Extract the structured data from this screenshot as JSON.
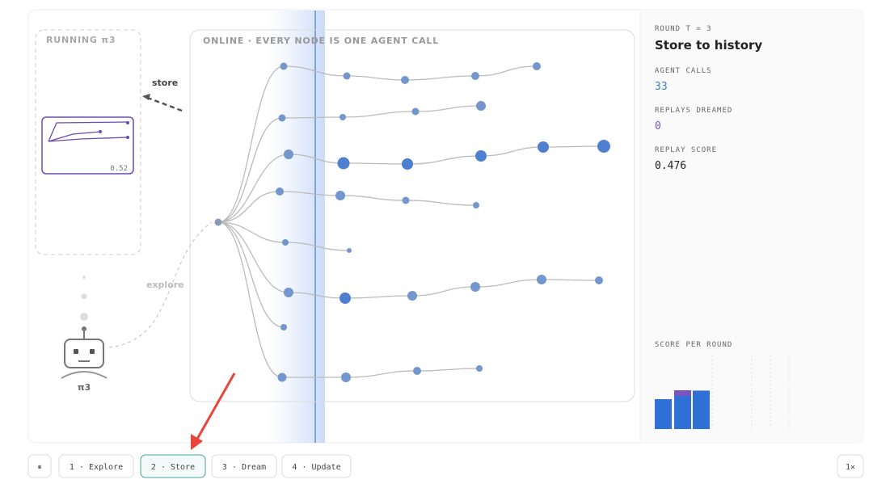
{
  "left_panel": {
    "title": "RUNNING π3",
    "thumb_score": "0.52",
    "store_label": "store",
    "explore_label": "explore",
    "agent_label": "π3"
  },
  "main_panel": {
    "title": "ONLINE · EVERY NODE IS ONE AGENT CALL"
  },
  "side_panel": {
    "round_label": "ROUND T = 3",
    "heading": "Store to history",
    "stats": [
      {
        "label": "AGENT CALLS",
        "value": "33"
      },
      {
        "label": "REPLAYS DREAMED",
        "value": "0"
      },
      {
        "label": "REPLAY SCORE",
        "value": "0.476"
      }
    ],
    "score_chart": {
      "title": "SCORE PER ROUND",
      "values": [
        0.37,
        0.48,
        0.476
      ]
    }
  },
  "controls": {
    "pause": "⏸",
    "steps": [
      "1 · Explore",
      "2 · Store",
      "3 · Dream",
      "4 · Update"
    ],
    "active_step": 1,
    "speed": "1×"
  }
}
